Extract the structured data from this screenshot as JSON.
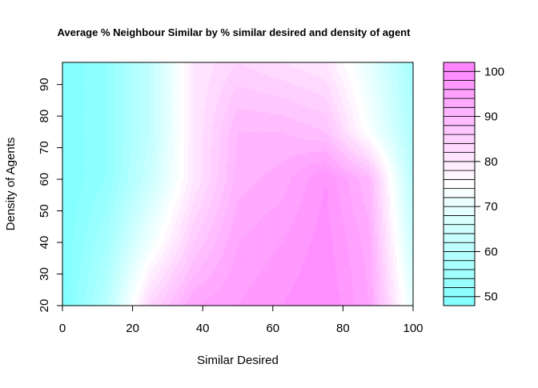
{
  "chart_data": {
    "type": "heatmap",
    "title": "Average % Neighbour Similar by % similar desired and density of agent",
    "xlabel": "Similar Desired",
    "ylabel": "Density of Agents",
    "xlim": [
      0,
      100
    ],
    "ylim": [
      20,
      97
    ],
    "x_ticks": [
      "0",
      "20",
      "40",
      "60",
      "80",
      "100"
    ],
    "y_ticks": [
      "20",
      "30",
      "40",
      "50",
      "60",
      "70",
      "80",
      "90"
    ],
    "x": [
      0,
      12.5,
      25,
      37.5,
      50,
      62.5,
      75,
      87.5,
      100
    ],
    "y": [
      20,
      40,
      60,
      75,
      97
    ],
    "z": [
      [
        48,
        60,
        84,
        94,
        96,
        98,
        100,
        94,
        70
      ],
      [
        48,
        56,
        72,
        86,
        94,
        96,
        99,
        93,
        64
      ],
      [
        48,
        52,
        64,
        80,
        91,
        93,
        98,
        90,
        60
      ],
      [
        48,
        52,
        62,
        80,
        90,
        90,
        88,
        74,
        58
      ],
      [
        48,
        52,
        62,
        80,
        84,
        82,
        80,
        70,
        56
      ]
    ],
    "colorbar": {
      "levels": [
        48,
        50,
        52,
        54,
        56,
        58,
        60,
        62,
        64,
        66,
        68,
        70,
        72,
        74,
        76,
        78,
        80,
        82,
        84,
        86,
        88,
        90,
        92,
        94,
        96,
        98,
        100,
        102
      ],
      "tick_labels": [
        "50",
        "60",
        "70",
        "80",
        "90",
        "100"
      ],
      "tick_values": [
        50,
        60,
        70,
        80,
        90,
        100
      ],
      "low_color": "#80ffff",
      "mid_color": "#ffffff",
      "high_color": "#ff80ff"
    },
    "legend": "right",
    "grid": false
  }
}
